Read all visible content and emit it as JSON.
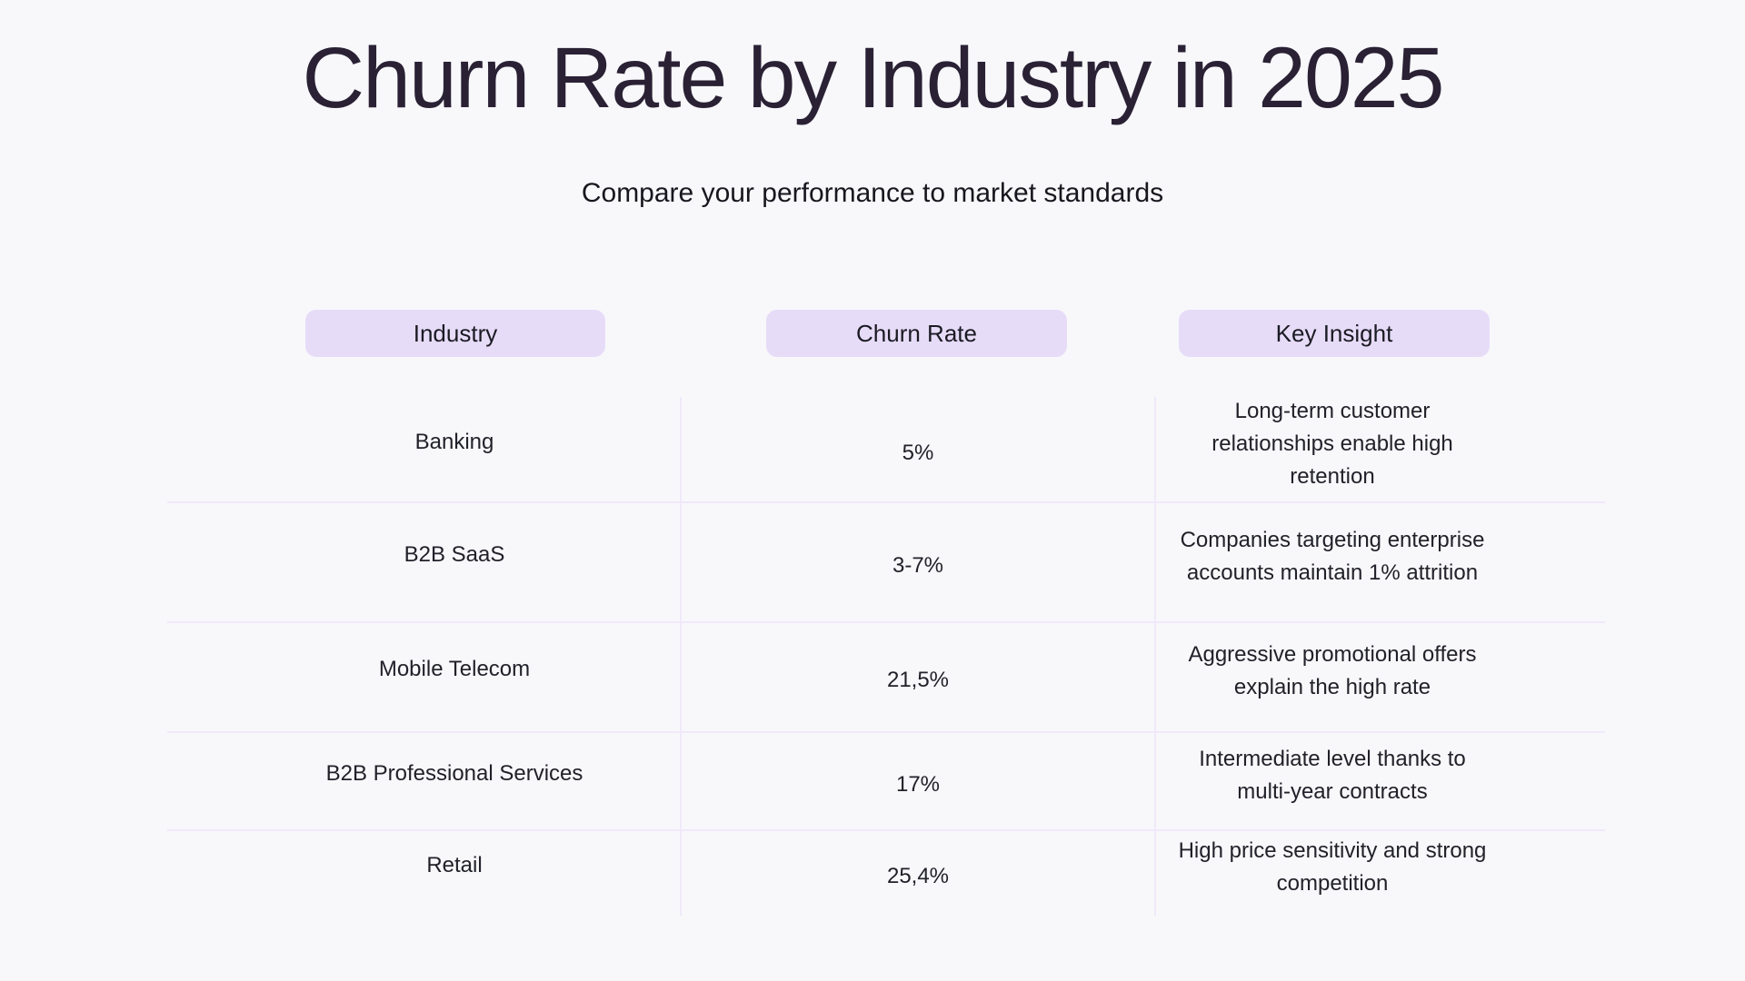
{
  "page": {
    "title": "Churn Rate by Industry in 2025",
    "subtitle": "Compare your performance to market standards"
  },
  "table": {
    "columns": [
      {
        "label": "Industry"
      },
      {
        "label": "Churn Rate"
      },
      {
        "label": "Key Insight"
      }
    ],
    "rows": [
      {
        "industry": "Banking",
        "churn_rate": "5%",
        "insight": "Long-term customer\nrelationships enable high\nretention"
      },
      {
        "industry": "B2B SaaS",
        "churn_rate": "3-7%",
        "insight": "Companies targeting enterprise\naccounts maintain 1% attrition"
      },
      {
        "industry": "Mobile Telecom",
        "churn_rate": "21,5%",
        "insight": "Aggressive promotional offers\nexplain the high rate"
      },
      {
        "industry": "B2B Professional Services",
        "churn_rate": "17%",
        "insight": "Intermediate level thanks to\nmulti-year contracts"
      },
      {
        "industry": "Retail",
        "churn_rate": "25,4%",
        "insight": "High price sensitivity and strong\ncompetition"
      }
    ]
  },
  "colors": {
    "background": "#f8f8fb",
    "header_pill": "#e7dcf8",
    "title_text": "#2a2135",
    "body_text": "#212129",
    "grid_line": "#f1e8fa"
  },
  "chart_data": {
    "type": "table",
    "title": "Churn Rate by Industry in 2025",
    "subtitle": "Compare your performance to market standards",
    "columns": [
      "Industry",
      "Churn Rate",
      "Key Insight"
    ],
    "rows": [
      [
        "Banking",
        "5%",
        "Long-term customer relationships enable high retention"
      ],
      [
        "B2B SaaS",
        "3-7%",
        "Companies targeting enterprise accounts maintain 1% attrition"
      ],
      [
        "Mobile Telecom",
        "21,5%",
        "Aggressive promotional offers explain the high rate"
      ],
      [
        "B2B Professional Services",
        "17%",
        "Intermediate level thanks to multi-year contracts"
      ],
      [
        "Retail",
        "25,4%",
        "High price sensitivity and strong competition"
      ]
    ],
    "churn_rate_numeric": [
      5,
      [
        3,
        7
      ],
      21.5,
      17,
      25.4
    ],
    "layout": {
      "grid": "light lavender row and column dividers",
      "header_style": "lavender pill badges"
    }
  }
}
